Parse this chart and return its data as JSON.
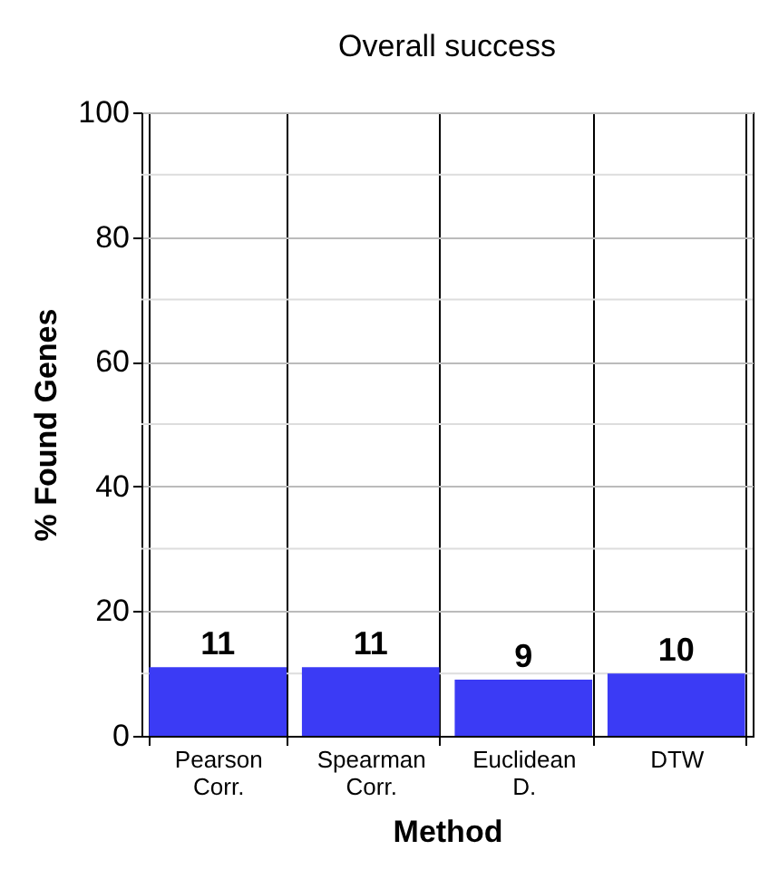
{
  "chart_data": {
    "type": "bar",
    "title": "Overall success",
    "xlabel": "Method",
    "ylabel": "% Found Genes",
    "categories": [
      "Pearson Corr.",
      "Spearman Corr.",
      "Euclidean D.",
      "DTW"
    ],
    "values": [
      11,
      11,
      9,
      10
    ],
    "color": "#3b3bf5",
    "ylim": [
      0,
      100
    ],
    "yticks": [
      0,
      {
        "value": 10,
        "label": null
      },
      20,
      {
        "value": 30,
        "label": null
      },
      40,
      {
        "value": 50,
        "label": null
      },
      60,
      {
        "value": 70,
        "label": null
      },
      80,
      {
        "value": 90,
        "label": null
      },
      100
    ],
    "grid": true,
    "data_labels": true
  }
}
